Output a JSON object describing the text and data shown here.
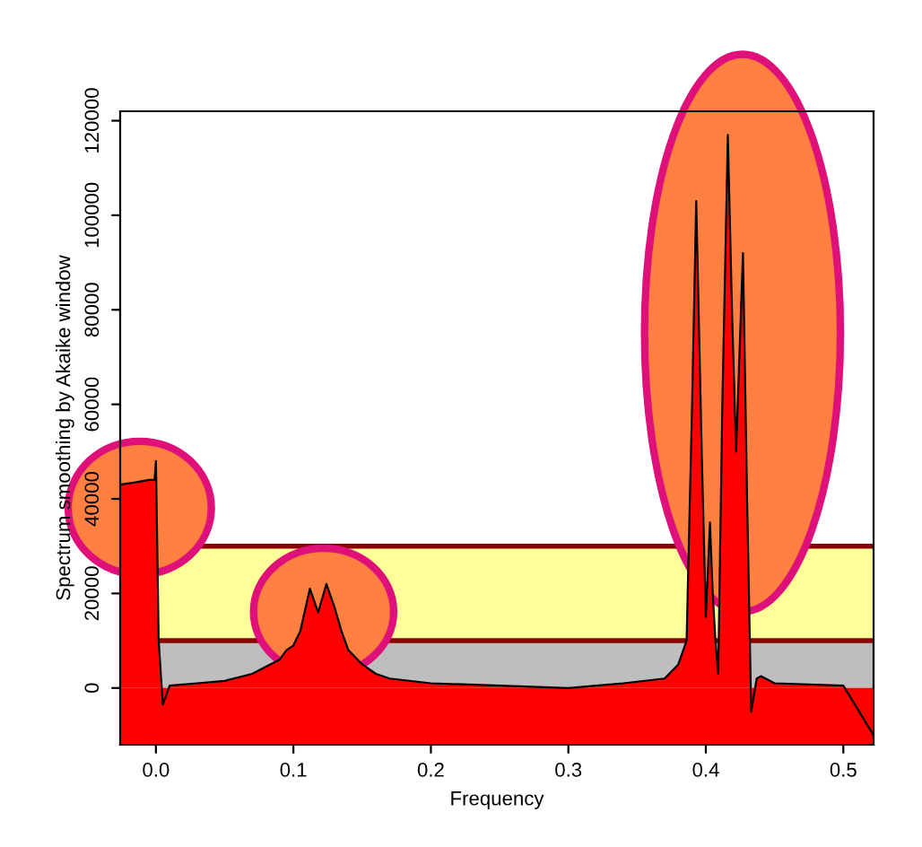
{
  "chart_data": {
    "type": "area",
    "xlabel": "Frequency",
    "ylabel": "Spectrum smoothing by Akaike window",
    "x": [
      -0.026,
      -0.015,
      -0.005,
      -0.001,
      0.0,
      0.002,
      0.005,
      0.01,
      0.03,
      0.05,
      0.07,
      0.08,
      0.09,
      0.095,
      0.1,
      0.105,
      0.112,
      0.118,
      0.124,
      0.13,
      0.135,
      0.14,
      0.15,
      0.16,
      0.17,
      0.2,
      0.25,
      0.3,
      0.34,
      0.37,
      0.38,
      0.386,
      0.39,
      0.393,
      0.397,
      0.4,
      0.403,
      0.405,
      0.407,
      0.409,
      0.412,
      0.416,
      0.419,
      0.422,
      0.427,
      0.43,
      0.433,
      0.437,
      0.44,
      0.45,
      0.5,
      0.522
    ],
    "series": [
      {
        "color": "#ff0000",
        "values": [
          43000,
          43500,
          44000,
          44000,
          48000,
          10000,
          -3500,
          500,
          1000,
          1500,
          3000,
          4500,
          6000,
          8000,
          9000,
          12000,
          21000,
          16000,
          22000,
          17000,
          12000,
          8000,
          5000,
          3000,
          2000,
          1000,
          500,
          0,
          1000,
          2000,
          5000,
          10000,
          60000,
          103000,
          50000,
          15000,
          35000,
          20000,
          10000,
          3000,
          60000,
          117000,
          80000,
          50000,
          92000,
          40000,
          -5000,
          2000,
          2500,
          1000,
          500,
          -10000
        ]
      }
    ],
    "xlim": [
      -0.026,
      0.522
    ],
    "ylim": [
      -12000,
      122000
    ],
    "xticks": [
      {
        "value": 0.0,
        "label": "0.0"
      },
      {
        "value": 0.1,
        "label": "0.1"
      },
      {
        "value": 0.2,
        "label": "0.2"
      },
      {
        "value": 0.3,
        "label": "0.3"
      },
      {
        "value": 0.4,
        "label": "0.4"
      },
      {
        "value": 0.5,
        "label": "0.5"
      }
    ],
    "yticks": [
      0,
      20000,
      40000,
      60000,
      80000,
      100000,
      120000
    ],
    "bands": [
      {
        "axis": "y",
        "from": -12000,
        "to": 0,
        "color": "#ff0000"
      },
      {
        "axis": "y",
        "from": 0,
        "to": 10000,
        "color": "#bebebe"
      },
      {
        "axis": "y",
        "from": 10000,
        "to": 30000,
        "color": "#ffff99"
      }
    ],
    "ref_lines": [
      {
        "axis": "y",
        "value": 10000,
        "color": "#8b0000"
      },
      {
        "axis": "y",
        "value": 30000,
        "color": "#8b0000"
      }
    ],
    "grid": false,
    "legend": false
  }
}
